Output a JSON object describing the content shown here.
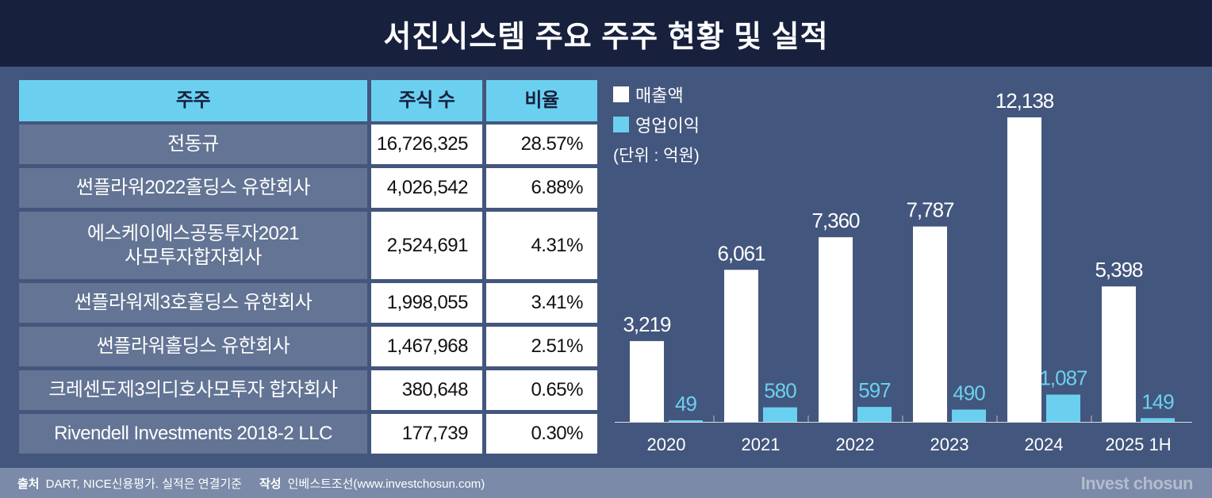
{
  "title": "서진시스템 주요 주주 현황 및 실적",
  "table": {
    "headers": [
      "주주",
      "주식 수",
      "비율"
    ],
    "rows": [
      {
        "name": "전동규",
        "shares": "16,726,325",
        "ratio": "28.57%"
      },
      {
        "name": "썬플라워2022홀딩스 유한회사",
        "shares": "4,026,542",
        "ratio": "6.88%"
      },
      {
        "name": "에스케이에스공동투자2021\n사모투자합자회사",
        "shares": "2,524,691",
        "ratio": "4.31%"
      },
      {
        "name": "썬플라워제3호홀딩스 유한회사",
        "shares": "1,998,055",
        "ratio": "3.41%"
      },
      {
        "name": "썬플라워홀딩스 유한회사",
        "shares": "1,467,968",
        "ratio": "2.51%"
      },
      {
        "name": "크레센도제3의디호사모투자 합자회사",
        "shares": "380,648",
        "ratio": "0.65%"
      },
      {
        "name": "Rivendell Investments 2018-2 LLC",
        "shares": "177,739",
        "ratio": "0.30%"
      }
    ]
  },
  "chart_data": {
    "type": "bar",
    "categories": [
      "2020",
      "2021",
      "2022",
      "2023",
      "2024",
      "2025 1H"
    ],
    "series": [
      {
        "name": "매출액",
        "color": "#ffffff",
        "values": [
          3219,
          6061,
          7360,
          7787,
          12138,
          5398
        ],
        "labels": [
          "3,219",
          "6,061",
          "7,360",
          "7,787",
          "12,138",
          "5,398"
        ]
      },
      {
        "name": "영업이익",
        "color": "#6bd0f0",
        "values": [
          49,
          580,
          597,
          490,
          1087,
          149
        ],
        "labels": [
          "49",
          "580",
          "597",
          "490",
          "1,087",
          "149"
        ]
      }
    ],
    "unit": "(단위 : 억원)",
    "ylim": [
      0,
      12138
    ],
    "legend": "top-left"
  },
  "footer": {
    "source_label": "출처",
    "source": "DART, NICE신용평가. 실적은 연결기준",
    "author_label": "작성",
    "author": "인베스트조선(www.investchosun.com)",
    "logo": "Invest chosun"
  }
}
